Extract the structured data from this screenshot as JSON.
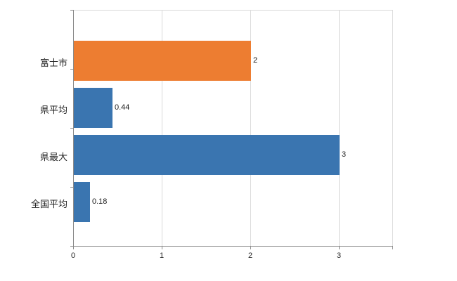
{
  "chart_data": {
    "type": "bar",
    "orientation": "horizontal",
    "title": "",
    "xlabel": "",
    "ylabel": "",
    "categories": [
      "富士市",
      "県平均",
      "県最大",
      "全国平均"
    ],
    "values": [
      2,
      0.44,
      3,
      0.18
    ],
    "value_labels": [
      "2",
      "0.44",
      "3",
      "0.18"
    ],
    "bar_colors": [
      "#ED7D31",
      "#3A75B0",
      "#3A75B0",
      "#3A75B0"
    ],
    "x_ticks": [
      0,
      1,
      2,
      3
    ],
    "x_tick_labels": [
      "0",
      "1",
      "2",
      "3"
    ],
    "xlim": [
      0,
      3.6
    ],
    "grid": "vertical",
    "legend": "none",
    "colors": {
      "grid": "#d9d9d9",
      "axis": "#898989",
      "label": "#262626",
      "background": "#ffffff"
    }
  }
}
